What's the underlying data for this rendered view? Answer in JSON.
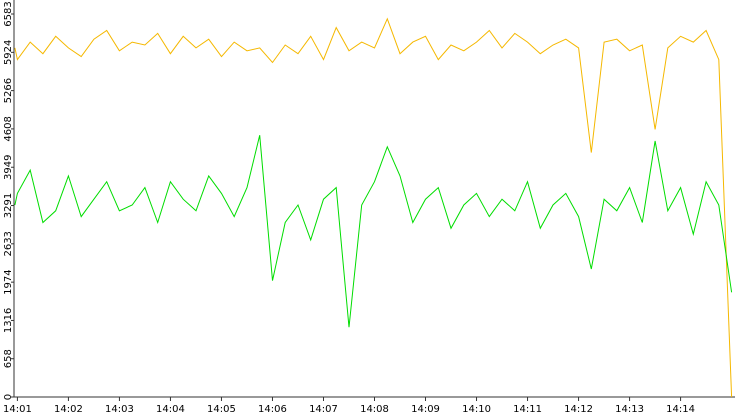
{
  "chart_data": {
    "type": "line",
    "x": [
      "14:00:57",
      "14:01:00",
      "14:01:15",
      "14:01:30",
      "14:01:45",
      "14:02:00",
      "14:02:15",
      "14:02:30",
      "14:02:45",
      "14:03:00",
      "14:03:15",
      "14:03:30",
      "14:03:45",
      "14:04:00",
      "14:04:15",
      "14:04:30",
      "14:04:45",
      "14:05:00",
      "14:05:15",
      "14:05:30",
      "14:05:45",
      "14:06:00",
      "14:06:15",
      "14:06:30",
      "14:06:45",
      "14:07:00",
      "14:07:15",
      "14:07:30",
      "14:07:45",
      "14:08:00",
      "14:08:15",
      "14:08:30",
      "14:08:45",
      "14:09:00",
      "14:09:15",
      "14:09:30",
      "14:09:45",
      "14:10:00",
      "14:10:15",
      "14:10:30",
      "14:10:45",
      "14:11:00",
      "14:11:15",
      "14:11:30",
      "14:11:45",
      "14:12:00",
      "14:12:15",
      "14:12:30",
      "14:12:45",
      "14:13:00",
      "14:13:15",
      "14:13:30",
      "14:13:45",
      "14:14:00",
      "14:14:15",
      "14:14:30",
      "14:14:45",
      "14:15:00"
    ],
    "series": [
      {
        "color": "#f5b800",
        "values": [
          6000,
          5800,
          6100,
          5900,
          6200,
          6000,
          5850,
          6150,
          6300,
          5950,
          6100,
          6050,
          6250,
          5900,
          6200,
          6000,
          6150,
          5850,
          6100,
          5950,
          6000,
          5750,
          6050,
          5900,
          6200,
          5800,
          6350,
          5950,
          6100,
          6000,
          6500,
          5900,
          6100,
          6200,
          5800,
          6050,
          5950,
          6100,
          6300,
          6000,
          6250,
          6100,
          5900,
          6050,
          6150,
          6000,
          4200,
          6100,
          6150,
          5950,
          6050,
          4600,
          6000,
          6200,
          6100,
          6300,
          5800,
          0
        ]
      },
      {
        "color": "#00dd00",
        "values": [
          3300,
          3500,
          3900,
          3000,
          3200,
          3800,
          3100,
          3400,
          3700,
          3200,
          3300,
          3600,
          3000,
          3700,
          3400,
          3200,
          3800,
          3500,
          3100,
          3600,
          4500,
          2000,
          3000,
          3300,
          2700,
          3400,
          3600,
          1200,
          3300,
          3700,
          4300,
          3800,
          3000,
          3400,
          3600,
          2900,
          3300,
          3500,
          3100,
          3400,
          3200,
          3700,
          2900,
          3300,
          3500,
          3100,
          2200,
          3400,
          3200,
          3600,
          3000,
          4400,
          3200,
          3600,
          2800,
          3700,
          3300,
          1800
        ]
      }
    ],
    "xlim": [
      "14:00:56",
      "14:15:04"
    ],
    "xticks": [
      "14:01",
      "14:02",
      "14:03",
      "14:04",
      "14:05",
      "14:06",
      "14:07",
      "14:08",
      "14:09",
      "14:10",
      "14:11",
      "14:12",
      "14:13",
      "14:14"
    ],
    "ylim": [
      0,
      6583
    ],
    "yticks": [
      0,
      658,
      1316,
      1974,
      2633,
      3291,
      3949,
      4608,
      5266,
      5924,
      6583
    ]
  }
}
